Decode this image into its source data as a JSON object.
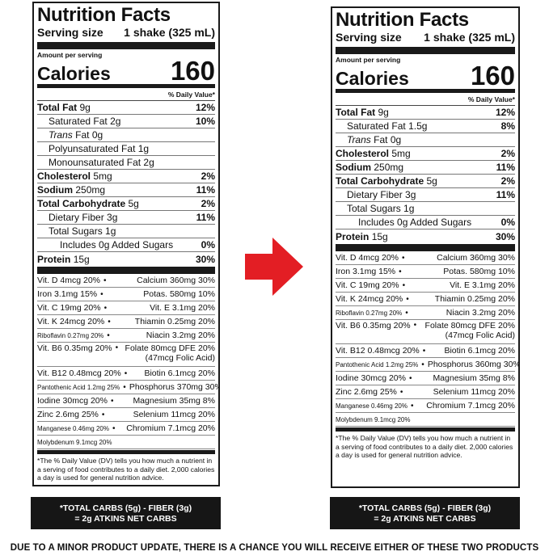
{
  "label_a": {
    "title": "Nutrition Facts",
    "serving_size_label": "Serving size",
    "serving_size_value": "1 shake (325 mL)",
    "amount_per_serving": "Amount per serving",
    "calories_label": "Calories",
    "calories_value": "160",
    "dv_header": "% Daily Value*",
    "rows": [
      {
        "name": "Total Fat",
        "amount": "9g",
        "dv": "12%",
        "bold": true,
        "indent": 0
      },
      {
        "name": "Saturated Fat",
        "amount": "2g",
        "dv": "10%",
        "bold": false,
        "indent": 1
      },
      {
        "name": "Trans",
        "amount": "Fat 0g",
        "dv": "",
        "bold": false,
        "indent": 1,
        "italic": true
      },
      {
        "name": "Polyunsaturated Fat",
        "amount": "1g",
        "dv": "",
        "bold": false,
        "indent": 1
      },
      {
        "name": "Monounsaturated Fat",
        "amount": "2g",
        "dv": "",
        "bold": false,
        "indent": 1
      },
      {
        "name": "Cholesterol",
        "amount": "5mg",
        "dv": "2%",
        "bold": true,
        "indent": 0
      },
      {
        "name": "Sodium",
        "amount": "250mg",
        "dv": "11%",
        "bold": true,
        "indent": 0
      },
      {
        "name": "Total Carbohydrate",
        "amount": "5g",
        "dv": "2%",
        "bold": true,
        "indent": 0
      },
      {
        "name": "Dietary Fiber",
        "amount": "3g",
        "dv": "11%",
        "bold": false,
        "indent": 1
      },
      {
        "name": "Total Sugars",
        "amount": "1g",
        "dv": "",
        "bold": false,
        "indent": 1
      },
      {
        "name": "Includes 0g Added Sugars",
        "amount": "",
        "dv": "0%",
        "bold": false,
        "indent": 2
      },
      {
        "name": "Protein",
        "amount": "15g",
        "dv": "30%",
        "bold": true,
        "indent": 0
      }
    ],
    "vitamins": [
      {
        "left": "Vit. D 4mcg 20%",
        "right": "Calcium 360mg 30%"
      },
      {
        "left": "Iron 3.1mg 15%",
        "right": "Potas. 580mg 10%"
      },
      {
        "left": "Vit. C 19mg 20%",
        "right": "Vit. E 3.1mg 20%"
      },
      {
        "left": "Vit. K 24mcg 20%",
        "right": "Thiamin 0.25mg 20%"
      },
      {
        "left": "Riboflavin 0.27mg 20%",
        "right": "Niacin 3.2mg 20%"
      },
      {
        "left": "Vit. B6 0.35mg 20%",
        "right": "Folate 80mcg DFE 20%",
        "right2": "(47mcg Folic Acid)"
      },
      {
        "left": "Vit. B12 0.48mcg 20%",
        "right": "Biotin 6.1mcg 20%"
      },
      {
        "left": "Pantothenic Acid 1.2mg 25%",
        "right": "Phosphorus 370mg 30%"
      },
      {
        "left": "Iodine 30mcg 20%",
        "right": "Magnesium 35mg 8%"
      },
      {
        "left": "Zinc 2.6mg 25%",
        "right": "Selenium 11mcg 20%"
      },
      {
        "left": "Manganese 0.46mg 20%",
        "right": "Chromium 7.1mcg 20%"
      },
      {
        "left": "Molybdenum 9.1mcg 20%",
        "right": ""
      }
    ],
    "footnote": "*The % Daily Value (DV) tells you how much a nutrient in a serving of food contributes to a daily diet. 2,000 calories a day is used for general nutrition advice."
  },
  "label_b": {
    "title": "Nutrition Facts",
    "serving_size_label": "Serving size",
    "serving_size_value": "1 shake (325 mL)",
    "amount_per_serving": "Amount per serving",
    "calories_label": "Calories",
    "calories_value": "160",
    "dv_header": "% Daily Value*",
    "rows": [
      {
        "name": "Total Fat",
        "amount": "9g",
        "dv": "12%",
        "bold": true,
        "indent": 0
      },
      {
        "name": "Saturated Fat",
        "amount": "1.5g",
        "dv": "8%",
        "bold": false,
        "indent": 1
      },
      {
        "name": "Trans",
        "amount": "Fat 0g",
        "dv": "",
        "bold": false,
        "indent": 1,
        "italic": true
      },
      {
        "name": "Cholesterol",
        "amount": "5mg",
        "dv": "2%",
        "bold": true,
        "indent": 0
      },
      {
        "name": "Sodium",
        "amount": "250mg",
        "dv": "11%",
        "bold": true,
        "indent": 0
      },
      {
        "name": "Total Carbohydrate",
        "amount": "5g",
        "dv": "2%",
        "bold": true,
        "indent": 0
      },
      {
        "name": "Dietary Fiber",
        "amount": "3g",
        "dv": "11%",
        "bold": false,
        "indent": 1
      },
      {
        "name": "Total Sugars",
        "amount": "1g",
        "dv": "",
        "bold": false,
        "indent": 1
      },
      {
        "name": "Includes 0g Added Sugars",
        "amount": "",
        "dv": "0%",
        "bold": false,
        "indent": 2
      },
      {
        "name": "Protein",
        "amount": "15g",
        "dv": "30%",
        "bold": true,
        "indent": 0
      }
    ],
    "vitamins": [
      {
        "left": "Vit. D 4mcg 20%",
        "right": "Calcium 360mg 30%"
      },
      {
        "left": "Iron 3.1mg 15%",
        "right": "Potas. 580mg 10%"
      },
      {
        "left": "Vit. C 19mg 20%",
        "right": "Vit. E 3.1mg 20%"
      },
      {
        "left": "Vit. K 24mcg 20%",
        "right": "Thiamin 0.25mg 20%"
      },
      {
        "left": "Riboflavin 0.27mg 20%",
        "right": "Niacin 3.2mg 20%"
      },
      {
        "left": "Vit. B6 0.35mg 20%",
        "right": "Folate 80mcg DFE 20%",
        "right2": "(47mcg Folic Acid)"
      },
      {
        "left": "Vit. B12 0.48mcg 20%",
        "right": "Biotin 6.1mcg 20%"
      },
      {
        "left": "Pantothenic Acid 1.2mg 25%",
        "right": "Phosphorus 360mg 30%"
      },
      {
        "left": "Iodine 30mcg 20%",
        "right": "Magnesium 35mg 8%"
      },
      {
        "left": "Zinc 2.6mg 25%",
        "right": "Selenium 11mcg 20%"
      },
      {
        "left": "Manganese 0.46mg 20%",
        "right": "Chromium 7.1mcg 20%"
      },
      {
        "left": "Molybdenum 9.1mcg 20%",
        "right": ""
      }
    ],
    "footnote": "*The % Daily Value (DV) tells you how much a nutrient in a serving of food contributes to a daily diet. 2,000 calories a day is used for general nutrition advice."
  },
  "net_carbs": {
    "line1": "*TOTAL CARBS (5g) - FIBER (3g)",
    "line2": "= 2g ATKINS NET CARBS"
  },
  "arrow": {
    "color": "#e31e24",
    "icon": "right-arrow-icon"
  },
  "bottom_note": "DUE TO A MINOR PRODUCT UPDATE, THERE IS A CHANCE YOU WILL RECEIVE EITHER OF THESE TWO PRODUCTS"
}
